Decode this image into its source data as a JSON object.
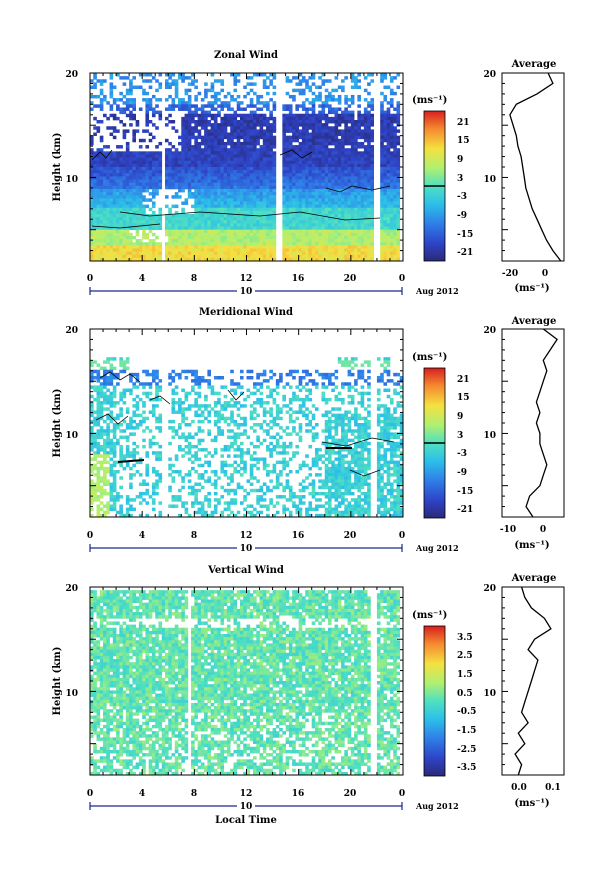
{
  "figure": {
    "x_axis_label": "Local Time",
    "y_axis_label": "Height (km)",
    "date_number": "10",
    "date_label": "Aug 2012",
    "avg_title": "Average",
    "unit_label": "(ms⁻¹)"
  },
  "chart_data": [
    {
      "type": "heatmap",
      "title": "Zonal Wind",
      "xlabel": "Local Time",
      "ylabel": "Height (km)",
      "xlim": [
        0,
        24
      ],
      "ylim": [
        2,
        20
      ],
      "x_ticks": [
        "0",
        "4",
        "8",
        "12",
        "16",
        "20",
        "0"
      ],
      "y_ticks": [
        "10",
        "20"
      ],
      "colorbar": {
        "unit": "(ms⁻¹)",
        "range": [
          -24,
          24
        ],
        "ticks": [
          "21",
          "15",
          "9",
          "3",
          "-3",
          "-9",
          "-15",
          "-21"
        ],
        "zero_line": 0
      },
      "average": {
        "title": "Average",
        "xlabel": "(ms⁻¹)",
        "xlim": [
          -27,
          12
        ],
        "x_ticks": [
          "-20",
          "0"
        ],
        "y_ticks": [
          "10",
          "20"
        ],
        "height": [
          2,
          3,
          4,
          5,
          6,
          7,
          8,
          9,
          10,
          11,
          12,
          13,
          14,
          15,
          16,
          17,
          18,
          19,
          20
        ],
        "value": [
          10,
          5,
          1,
          -2,
          -5,
          -8,
          -10,
          -12,
          -13,
          -14,
          -15,
          -17,
          -18,
          -20,
          -22,
          -18,
          -5,
          5,
          2
        ]
      }
    },
    {
      "type": "heatmap",
      "title": "Meridional Wind",
      "xlabel": "Local Time",
      "ylabel": "Height (km)",
      "xlim": [
        0,
        24
      ],
      "ylim": [
        2,
        20
      ],
      "x_ticks": [
        "0",
        "4",
        "8",
        "12",
        "16",
        "20",
        "0"
      ],
      "y_ticks": [
        "10",
        "20"
      ],
      "colorbar": {
        "unit": "(ms⁻¹)",
        "range": [
          -24,
          24
        ],
        "ticks": [
          "21",
          "15",
          "9",
          "3",
          "-3",
          "-9",
          "-15",
          "-21"
        ],
        "zero_line": 0
      },
      "average": {
        "title": "Average",
        "xlabel": "(ms⁻¹)",
        "xlim": [
          -12,
          6
        ],
        "x_ticks": [
          "-10",
          "0"
        ],
        "y_ticks": [
          "10",
          "20"
        ],
        "height": [
          2,
          3,
          4,
          5,
          6,
          7,
          8,
          9,
          10,
          11,
          12,
          13,
          14,
          15,
          16,
          17,
          18,
          19,
          20
        ],
        "value": [
          -3,
          -5,
          -4,
          -1,
          0,
          1,
          0,
          -1,
          -1,
          -2,
          -1,
          -2,
          -1,
          0,
          1,
          0,
          2,
          4,
          0
        ]
      }
    },
    {
      "type": "heatmap",
      "title": "Vertical Wind",
      "xlabel": "Local Time",
      "ylabel": "Height (km)",
      "xlim": [
        0,
        24
      ],
      "ylim": [
        2,
        20
      ],
      "x_ticks": [
        "0",
        "4",
        "8",
        "12",
        "16",
        "20",
        "0"
      ],
      "y_ticks": [
        "10",
        "20"
      ],
      "colorbar": {
        "unit": "(ms⁻¹)",
        "range": [
          -4,
          4
        ],
        "ticks": [
          "3.5",
          "2.5",
          "1.5",
          "0.5",
          "-0.5",
          "-1.5",
          "-2.5",
          "-3.5"
        ],
        "zero_line": null
      },
      "average": {
        "title": "Average",
        "xlabel": "(ms⁻¹)",
        "xlim": [
          -0.05,
          0.14
        ],
        "x_ticks": [
          "0.0",
          "0.1"
        ],
        "y_ticks": [
          "10",
          "20"
        ],
        "height": [
          2,
          3,
          4,
          5,
          6,
          7,
          8,
          9,
          10,
          11,
          12,
          13,
          14,
          15,
          16,
          17,
          18,
          19,
          20
        ],
        "value": [
          0.0,
          0.01,
          -0.01,
          0.02,
          0.0,
          0.03,
          0.01,
          0.02,
          0.03,
          0.04,
          0.05,
          0.06,
          0.03,
          0.05,
          0.1,
          0.08,
          0.04,
          0.02,
          0.01
        ]
      }
    }
  ]
}
